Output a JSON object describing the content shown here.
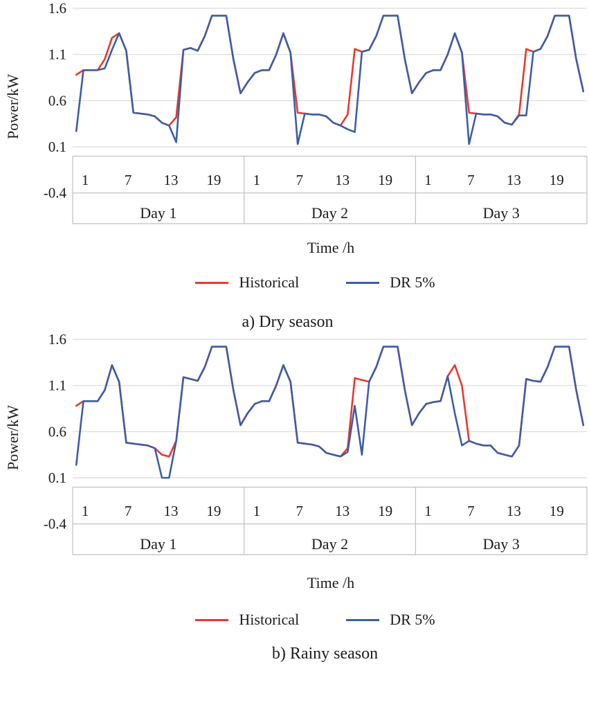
{
  "style": {
    "background": "#ffffff",
    "grid_color": "#d9d9d9",
    "band_border_color": "#bfbfbf",
    "text_color": "#1c1c1c",
    "historical_color": "#e8382d",
    "dr_color": "#3b5ea6"
  },
  "legend": {
    "historical": "Historical",
    "dr": "DR 5%"
  },
  "chart_data": [
    {
      "type": "line",
      "title": "a) Dry season",
      "xlabel": "Time /h",
      "ylabel": "Power/kW",
      "ylim": [
        -0.4,
        1.6
      ],
      "y_ticks": [
        1.6,
        1.1,
        0.6,
        0.1,
        -0.4
      ],
      "x_hour_ticks": [
        1,
        7,
        13,
        19
      ],
      "day_labels": [
        "Day 1",
        "Day 2",
        "Day 3"
      ],
      "hours_per_day": 24,
      "grid": true,
      "legend_position": "bottom",
      "series": [
        {
          "name": "Historical",
          "color": "#e8382d",
          "values": [
            0.88,
            0.93,
            0.93,
            0.93,
            1.05,
            1.28,
            1.33,
            1.14,
            0.47,
            0.46,
            0.45,
            0.43,
            0.36,
            0.33,
            0.42,
            1.15,
            1.17,
            1.14,
            1.3,
            1.52,
            1.52,
            1.52,
            1.05,
            0.68,
            0.8,
            0.9,
            0.93,
            0.93,
            1.1,
            1.33,
            1.12,
            0.47,
            0.46,
            0.45,
            0.45,
            0.43,
            0.36,
            0.33,
            0.45,
            1.16,
            1.13,
            1.15,
            1.3,
            1.52,
            1.52,
            1.52,
            1.05,
            0.68,
            0.8,
            0.9,
            0.93,
            0.93,
            1.1,
            1.33,
            1.12,
            0.47,
            0.46,
            0.45,
            0.45,
            0.43,
            0.36,
            0.34,
            0.45,
            1.16,
            1.13,
            1.16,
            1.3,
            1.52,
            1.52,
            1.52,
            1.05,
            0.7
          ]
        },
        {
          "name": "DR 5%",
          "color": "#3b5ea6",
          "values": [
            0.27,
            0.93,
            0.93,
            0.93,
            0.95,
            1.15,
            1.33,
            1.14,
            0.47,
            0.46,
            0.45,
            0.43,
            0.36,
            0.33,
            0.15,
            1.15,
            1.17,
            1.14,
            1.3,
            1.52,
            1.52,
            1.52,
            1.05,
            0.68,
            0.8,
            0.9,
            0.93,
            0.93,
            1.1,
            1.33,
            1.12,
            0.13,
            0.46,
            0.45,
            0.45,
            0.43,
            0.36,
            0.33,
            0.29,
            0.26,
            1.13,
            1.15,
            1.3,
            1.52,
            1.52,
            1.52,
            1.05,
            0.68,
            0.8,
            0.9,
            0.93,
            0.93,
            1.1,
            1.33,
            1.12,
            0.13,
            0.46,
            0.45,
            0.45,
            0.43,
            0.36,
            0.34,
            0.44,
            0.44,
            1.13,
            1.16,
            1.3,
            1.52,
            1.52,
            1.52,
            1.05,
            0.7
          ]
        }
      ]
    },
    {
      "type": "line",
      "title": "b) Rainy season",
      "xlabel": "Time /h",
      "ylabel": "Power/kW",
      "ylim": [
        -0.4,
        1.6
      ],
      "y_ticks": [
        1.6,
        1.1,
        0.6,
        0.1,
        -0.4
      ],
      "x_hour_ticks": [
        1,
        7,
        13,
        19
      ],
      "day_labels": [
        "Day 1",
        "Day 2",
        "Day 3"
      ],
      "hours_per_day": 24,
      "grid": true,
      "legend_position": "bottom",
      "series": [
        {
          "name": "Historical",
          "color": "#e8382d",
          "values": [
            0.88,
            0.93,
            0.93,
            0.93,
            1.05,
            1.32,
            1.14,
            0.48,
            0.47,
            0.46,
            0.45,
            0.42,
            0.35,
            0.33,
            0.5,
            1.19,
            1.17,
            1.15,
            1.3,
            1.52,
            1.52,
            1.52,
            1.05,
            0.67,
            0.8,
            0.9,
            0.93,
            0.93,
            1.1,
            1.32,
            1.14,
            0.48,
            0.47,
            0.46,
            0.44,
            0.37,
            0.35,
            0.33,
            0.42,
            1.18,
            1.16,
            1.14,
            1.3,
            1.52,
            1.52,
            1.52,
            1.05,
            0.67,
            0.8,
            0.9,
            0.92,
            0.93,
            1.2,
            1.32,
            1.1,
            0.5,
            0.47,
            0.45,
            0.45,
            0.37,
            0.35,
            0.33,
            0.45,
            1.17,
            1.15,
            1.14,
            1.3,
            1.52,
            1.52,
            1.52,
            1.05,
            0.67
          ]
        },
        {
          "name": "DR 5%",
          "color": "#3b5ea6",
          "values": [
            0.24,
            0.93,
            0.93,
            0.93,
            1.05,
            1.32,
            1.14,
            0.48,
            0.47,
            0.46,
            0.45,
            0.42,
            0.1,
            0.1,
            0.5,
            1.19,
            1.17,
            1.15,
            1.3,
            1.52,
            1.52,
            1.52,
            1.05,
            0.67,
            0.8,
            0.9,
            0.93,
            0.93,
            1.1,
            1.32,
            1.14,
            0.48,
            0.47,
            0.46,
            0.44,
            0.37,
            0.35,
            0.33,
            0.38,
            0.88,
            0.35,
            1.14,
            1.3,
            1.52,
            1.52,
            1.52,
            1.05,
            0.67,
            0.8,
            0.9,
            0.92,
            0.93,
            1.2,
            0.8,
            0.45,
            0.5,
            0.47,
            0.45,
            0.45,
            0.37,
            0.35,
            0.33,
            0.45,
            1.17,
            1.15,
            1.14,
            1.3,
            1.52,
            1.52,
            1.52,
            1.05,
            0.67
          ]
        }
      ]
    }
  ]
}
